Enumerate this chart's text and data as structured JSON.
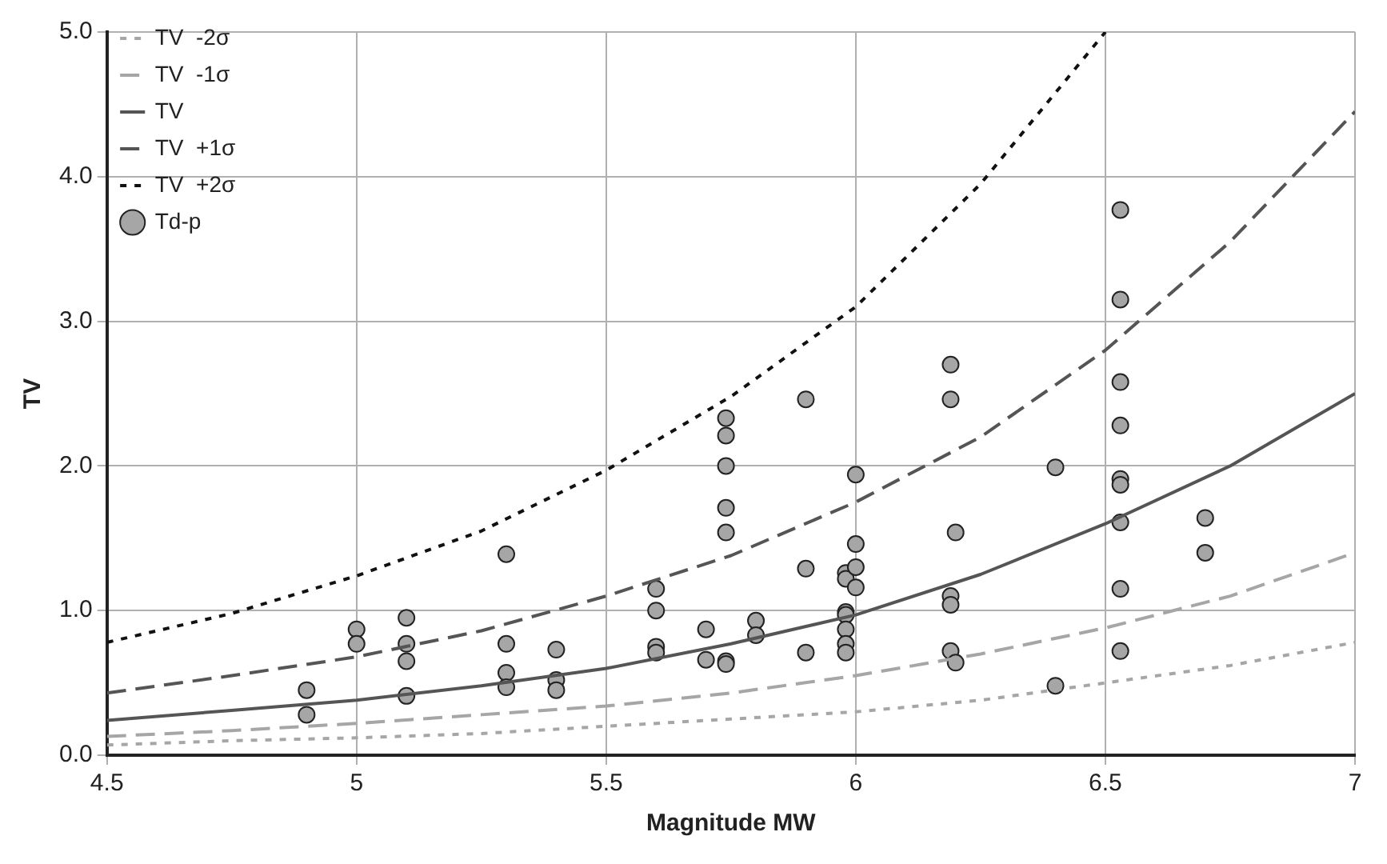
{
  "chart_data": {
    "type": "line",
    "xlabel": "Magnitude MW",
    "ylabel": "TV",
    "xlim": [
      4.5,
      7
    ],
    "ylim": [
      0,
      5
    ],
    "xticks": [
      4.5,
      5,
      5.5,
      6,
      6.5,
      7
    ],
    "yticks": [
      {
        "value": 0,
        "label": "0.0"
      },
      {
        "value": 1,
        "label": "1.0"
      },
      {
        "value": 2,
        "label": "2.0"
      },
      {
        "value": 3,
        "label": "3.0"
      },
      {
        "value": 4,
        "label": "4.0"
      },
      {
        "value": 5,
        "label": "5.0"
      }
    ],
    "grid": true,
    "legend": "top left",
    "series": [
      {
        "name": "TV  -2σ",
        "line_style": "dotted",
        "color": "#a6a6a6",
        "x": [
          4.5,
          4.75,
          5,
          5.25,
          5.5,
          5.75,
          6,
          6.25,
          6.5,
          6.75,
          7
        ],
        "values": [
          0.07,
          0.1,
          0.12,
          0.15,
          0.2,
          0.25,
          0.3,
          0.38,
          0.5,
          0.62,
          0.78
        ]
      },
      {
        "name": "TV  -1σ",
        "line_style": "dashed",
        "color": "#a6a6a6",
        "x": [
          4.5,
          4.75,
          5,
          5.25,
          5.5,
          5.75,
          6,
          6.25,
          6.5,
          6.75,
          7
        ],
        "values": [
          0.13,
          0.17,
          0.22,
          0.28,
          0.34,
          0.43,
          0.55,
          0.7,
          0.88,
          1.1,
          1.4
        ]
      },
      {
        "name": "TV",
        "line_style": "solid",
        "color": "#555555",
        "x": [
          4.5,
          4.75,
          5,
          5.25,
          5.5,
          5.75,
          6,
          6.25,
          6.5,
          6.75,
          7
        ],
        "values": [
          0.24,
          0.31,
          0.38,
          0.48,
          0.6,
          0.77,
          0.97,
          1.25,
          1.6,
          2.0,
          2.5
        ]
      },
      {
        "name": "TV  +1σ",
        "line_style": "dashed",
        "color": "#555555",
        "x": [
          4.5,
          4.75,
          5,
          5.25,
          5.5,
          5.75,
          6,
          6.25,
          6.5,
          6.75,
          7
        ],
        "values": [
          0.43,
          0.55,
          0.68,
          0.86,
          1.1,
          1.38,
          1.75,
          2.2,
          2.8,
          3.55,
          4.45
        ]
      },
      {
        "name": "TV  +2σ",
        "line_style": "dotted",
        "color": "#111111",
        "x": [
          4.5,
          4.75,
          5,
          5.25,
          5.5,
          5.75,
          6,
          6.25,
          6.5
        ],
        "values": [
          0.78,
          0.98,
          1.24,
          1.55,
          1.97,
          2.48,
          3.1,
          3.95,
          5.0
        ]
      },
      {
        "name": "Td-p",
        "type": "scatter",
        "marker": "circle",
        "color": "#a6a6a6",
        "x": [
          4.9,
          4.9,
          5,
          5,
          5.1,
          5.1,
          5.1,
          5.1,
          5.3,
          5.3,
          5.3,
          5.3,
          5.4,
          5.4,
          5.4,
          5.6,
          5.6,
          5.6,
          5.6,
          5.7,
          5.7,
          5.74,
          5.74,
          5.74,
          5.74,
          5.74,
          5.74,
          5.74,
          5.8,
          5.8,
          5.9,
          5.9,
          5.9,
          5.98,
          5.98,
          5.98,
          5.98,
          5.98,
          5.98,
          5.98,
          6,
          6,
          6,
          6,
          6.19,
          6.19,
          6.19,
          6.19,
          6.19,
          6.2,
          6.2,
          6.4,
          6.4,
          6.53,
          6.53,
          6.53,
          6.53,
          6.53,
          6.53,
          6.53,
          6.53,
          6.53,
          6.7,
          6.7
        ],
        "values": [
          0.45,
          0.28,
          0.87,
          0.77,
          0.95,
          0.77,
          0.65,
          0.41,
          1.39,
          0.77,
          0.57,
          0.47,
          0.73,
          0.52,
          0.45,
          1.15,
          1.0,
          0.75,
          0.71,
          0.87,
          0.66,
          2.33,
          2.21,
          2.0,
          1.71,
          1.54,
          0.65,
          0.63,
          0.93,
          0.83,
          2.46,
          1.29,
          0.71,
          1.26,
          1.22,
          0.99,
          0.97,
          0.87,
          0.77,
          0.71,
          1.94,
          1.46,
          1.3,
          1.16,
          2.7,
          2.46,
          1.1,
          1.04,
          0.72,
          1.54,
          0.64,
          1.99,
          0.48,
          3.77,
          3.15,
          2.58,
          2.28,
          1.91,
          1.87,
          1.61,
          1.15,
          0.72,
          1.64,
          1.4
        ]
      }
    ]
  }
}
